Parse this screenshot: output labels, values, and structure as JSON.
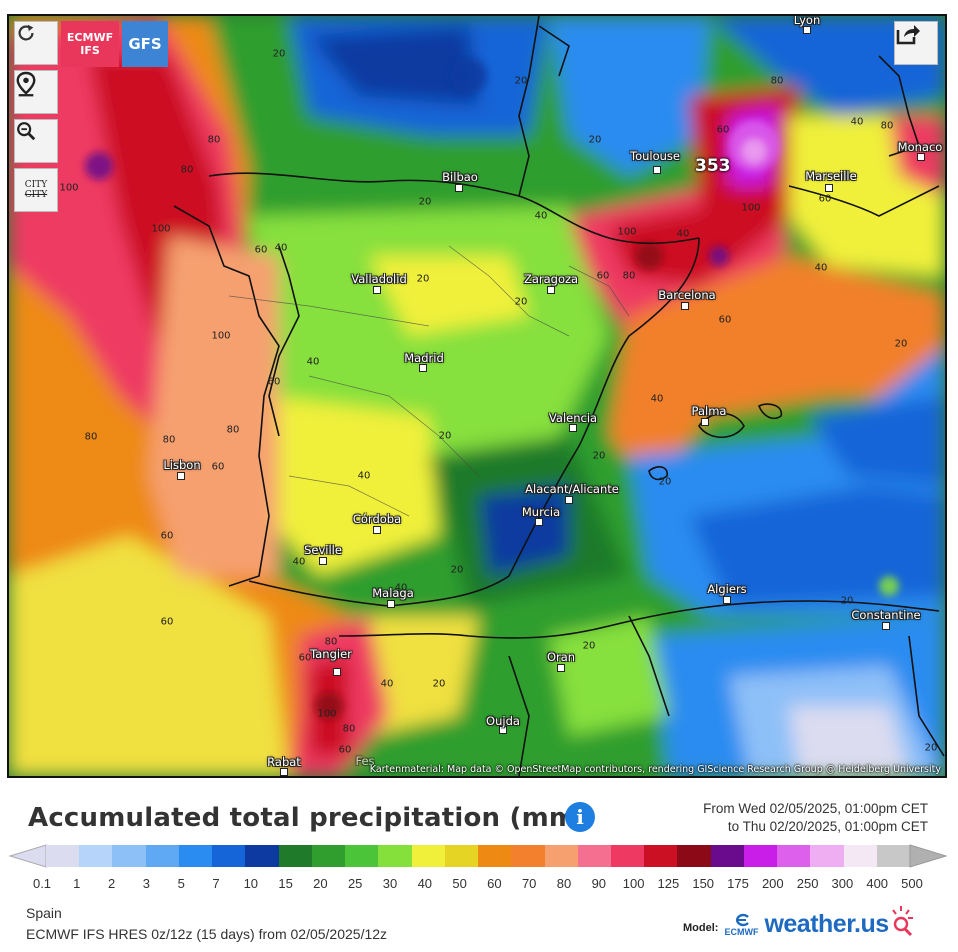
{
  "map": {
    "attribution": "Kartenmaterial: Map data © OpenStreetMap contributors, rendering GIScience Research Group @ Heidelberg University",
    "peak_label": "353",
    "cities": [
      "Lyon",
      "Toulouse",
      "Marseille",
      "Monaco",
      "Bilbao",
      "Zaragoza",
      "Barcelona",
      "Valladolid",
      "Madrid",
      "Valencia",
      "Palma",
      "Lisbon",
      "Córdoba",
      "Seville",
      "Alacant/Alicante",
      "Murcia",
      "Malaga",
      "Algiers",
      "Constantine",
      "Tangier",
      "Oran",
      "Oujda",
      "Rabat",
      "Fes"
    ],
    "contour_labels": [
      "20",
      "40",
      "60",
      "80",
      "100",
      "353"
    ]
  },
  "controls": {
    "reload": "reload-icon",
    "location": "location-pin-icon",
    "zoom": "zoom-out-icon",
    "city_toggle_top": "CITY",
    "city_toggle_bottom": "CITY",
    "share": "share-icon"
  },
  "models": {
    "ecmwf_line1": "ECMWF",
    "ecmwf_line2": "IFS",
    "gfs": "GFS",
    "ecmwf_color": "#e8375a",
    "gfs_color": "#3e84d4"
  },
  "legend": {
    "title": "Accumulated total precipitation (mm)",
    "from": "From Wed 02/05/2025, 01:00pm CET",
    "to": "to Thu 02/20/2025, 01:00pm CET",
    "ticks": [
      "0.1",
      "1",
      "2",
      "3",
      "5",
      "7",
      "10",
      "15",
      "20",
      "25",
      "30",
      "40",
      "50",
      "60",
      "70",
      "80",
      "90",
      "100",
      "125",
      "150",
      "175",
      "200",
      "250",
      "300",
      "400",
      "500"
    ],
    "colors": [
      "#dcdcf0",
      "#b6d4fa",
      "#8ec0f8",
      "#5ea8f4",
      "#2a8cf0",
      "#1565d8",
      "#0d3aa0",
      "#1f7a2a",
      "#2f9e2f",
      "#4cc43a",
      "#86e03c",
      "#f0f03a",
      "#e6d424",
      "#ee8a14",
      "#f2802c",
      "#f6a070",
      "#f57090",
      "#ee3a62",
      "#cc1024",
      "#8c0a18",
      "#6a0a8c",
      "#c81ee8",
      "#dc60ec",
      "#f0aef2",
      "#f4e8f4",
      "#c8c8c8"
    ]
  },
  "footer": {
    "region": "Spain",
    "description": "ECMWF IFS HRES 0z/12z (15 days) from 02/05/2025/12z",
    "model_label": "Model:",
    "ecmwf_logo": "ECMWF",
    "brand": "weather.us"
  }
}
